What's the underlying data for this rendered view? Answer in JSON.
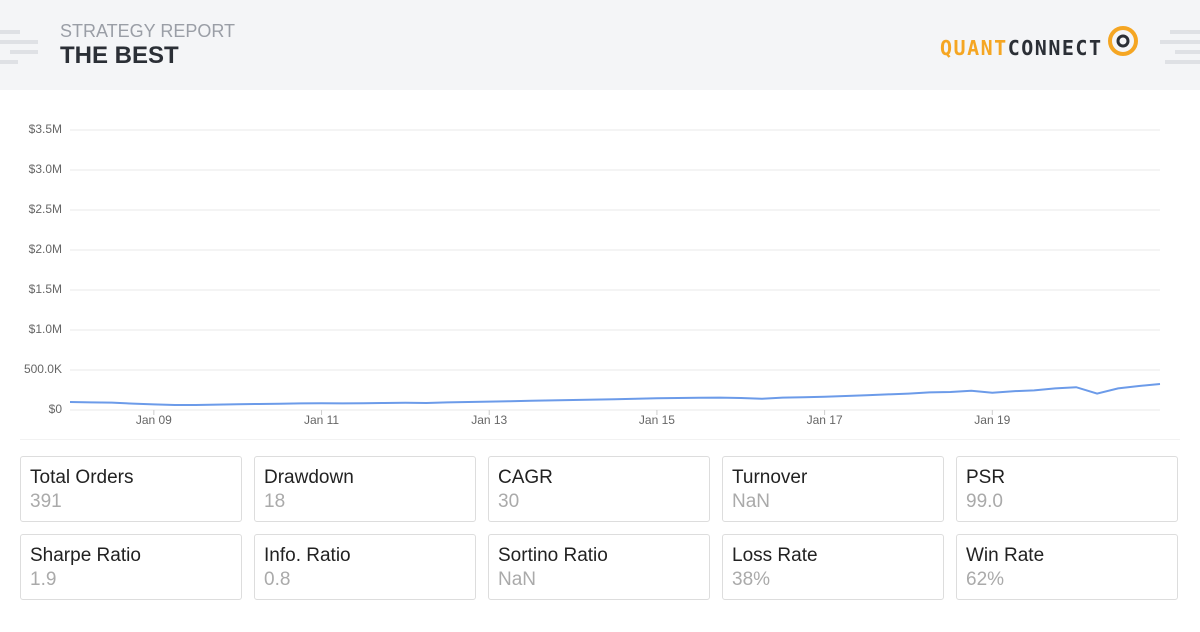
{
  "header": {
    "subtitle": "STRATEGY REPORT",
    "title": "THE BEST",
    "logo_left": "QUANT",
    "logo_right": "CONNECT"
  },
  "chart_data": {
    "type": "line",
    "color": "#6c9be9",
    "grid": true,
    "x": [
      "2008-01",
      "2008-04",
      "2008-07",
      "2008-10",
      "2009-01",
      "2009-04",
      "2009-07",
      "2009-10",
      "2010-01",
      "2010-04",
      "2010-07",
      "2010-10",
      "2011-01",
      "2011-04",
      "2011-07",
      "2011-10",
      "2012-01",
      "2012-04",
      "2012-07",
      "2012-10",
      "2013-01",
      "2013-04",
      "2013-07",
      "2013-10",
      "2014-01",
      "2014-04",
      "2014-07",
      "2014-10",
      "2015-01",
      "2015-04",
      "2015-07",
      "2015-10",
      "2016-01",
      "2016-04",
      "2016-07",
      "2016-10",
      "2017-01",
      "2017-04",
      "2017-07",
      "2017-10",
      "2018-01",
      "2018-04",
      "2018-07",
      "2018-10",
      "2019-01",
      "2019-04",
      "2019-07",
      "2019-10",
      "2020-01",
      "2020-04",
      "2020-07",
      "2020-10",
      "2021-01"
    ],
    "values": [
      100000,
      95000,
      92000,
      80000,
      70000,
      62000,
      63000,
      68000,
      72000,
      75000,
      78000,
      82000,
      85000,
      83000,
      85000,
      88000,
      90000,
      88000,
      95000,
      100000,
      105000,
      110000,
      115000,
      120000,
      125000,
      130000,
      135000,
      140000,
      148000,
      150000,
      152000,
      155000,
      150000,
      140000,
      155000,
      160000,
      165000,
      175000,
      185000,
      195000,
      205000,
      220000,
      225000,
      240000,
      215000,
      235000,
      245000,
      270000,
      285000,
      205000,
      270000,
      300000,
      325000
    ],
    "xlim": [
      "2008-01",
      "2021-01"
    ],
    "xticks": [
      {
        "value": "2009-01",
        "label": "Jan 09"
      },
      {
        "value": "2011-01",
        "label": "Jan 11"
      },
      {
        "value": "2013-01",
        "label": "Jan 13"
      },
      {
        "value": "2015-01",
        "label": "Jan 15"
      },
      {
        "value": "2017-01",
        "label": "Jan 17"
      },
      {
        "value": "2019-01",
        "label": "Jan 19"
      }
    ],
    "ylim": [
      0,
      3500000
    ],
    "yticks": [
      {
        "value": 0,
        "label": "$0"
      },
      {
        "value": 500000,
        "label": "500.0K"
      },
      {
        "value": 1000000,
        "label": "$1.0M"
      },
      {
        "value": 1500000,
        "label": "$1.5M"
      },
      {
        "value": 2000000,
        "label": "$2.0M"
      },
      {
        "value": 2500000,
        "label": "$2.5M"
      },
      {
        "value": 3000000,
        "label": "$3.0M"
      },
      {
        "value": 3500000,
        "label": "$3.5M"
      }
    ]
  },
  "stats": [
    {
      "label": "Total Orders",
      "value": "391"
    },
    {
      "label": "Drawdown",
      "value": "18"
    },
    {
      "label": "CAGR",
      "value": "30"
    },
    {
      "label": "Turnover",
      "value": "NaN"
    },
    {
      "label": "PSR",
      "value": "99.0"
    },
    {
      "label": "Sharpe Ratio",
      "value": "1.9"
    },
    {
      "label": "Info. Ratio",
      "value": "0.8"
    },
    {
      "label": "Sortino Ratio",
      "value": "NaN"
    },
    {
      "label": "Loss Rate",
      "value": "38%"
    },
    {
      "label": "Win Rate",
      "value": "62%"
    }
  ]
}
